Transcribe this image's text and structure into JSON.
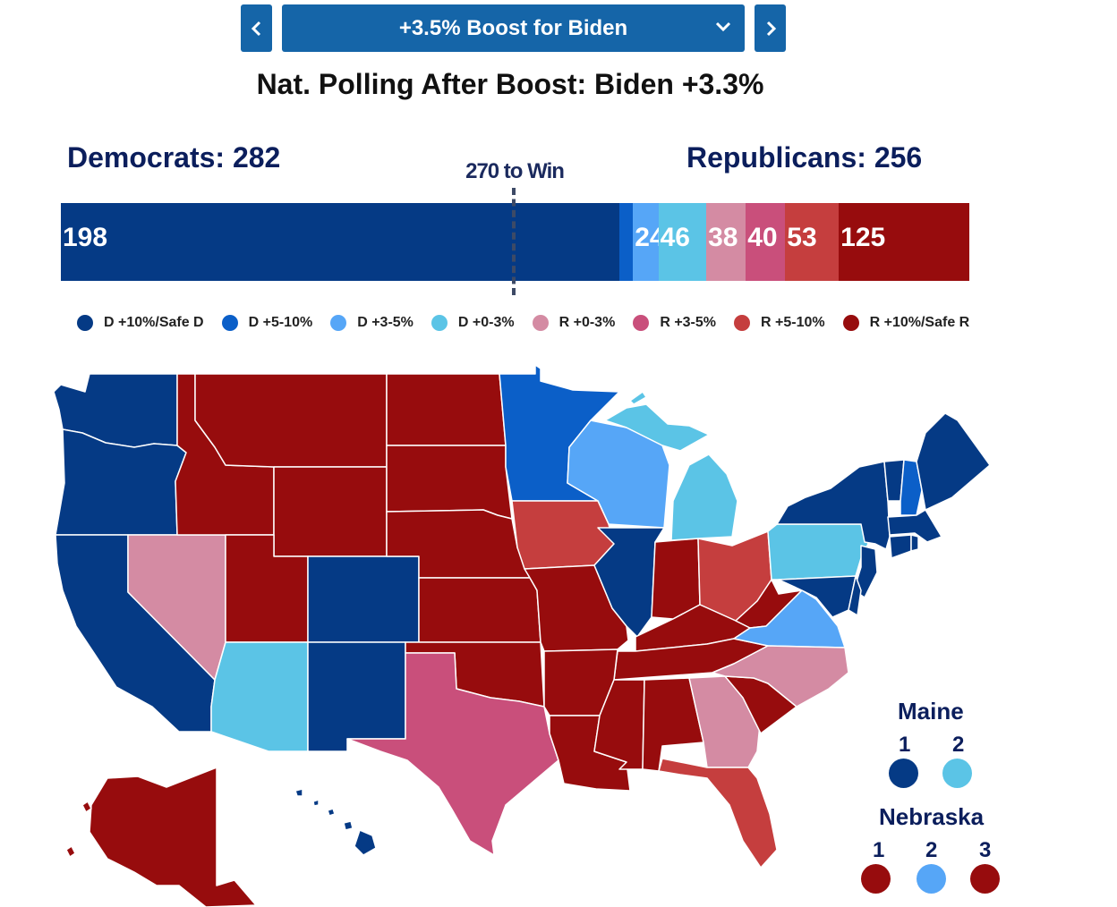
{
  "header": {
    "scenario_label": "+3.5% Boost for Biden",
    "polling_text": "Nat. Polling After Boost: Biden +3.3%"
  },
  "totals": {
    "democrats_label": "Democrats: 282",
    "republicans_label": "Republicans: 256",
    "to_win_label": "270 to Win"
  },
  "bar": {
    "segments": [
      {
        "label": "198",
        "value": 198,
        "color": "#053a85"
      },
      {
        "label": "",
        "value": 5,
        "color": "#0b5fc8"
      },
      {
        "label": "24",
        "value": 9,
        "color": "#56a6f7"
      },
      {
        "label": "46",
        "value": 17,
        "color": "#5bc4e6"
      },
      {
        "label": "38",
        "value": 14,
        "color": "#d48ba3"
      },
      {
        "label": "40",
        "value": 14,
        "color": "#c94f7b"
      },
      {
        "label": "53",
        "value": 19,
        "color": "#c53e3e"
      },
      {
        "label": "125",
        "value": 46,
        "color": "#970c0d"
      }
    ]
  },
  "legend": [
    {
      "label": "D +10%/Safe D",
      "color": "#053a85"
    },
    {
      "label": "D +5-10%",
      "color": "#0b5fc8"
    },
    {
      "label": "D +3-5%",
      "color": "#56a6f7"
    },
    {
      "label": "D +0-3%",
      "color": "#5bc4e6"
    },
    {
      "label": "R +0-3%",
      "color": "#d48ba3"
    },
    {
      "label": "R +3-5%",
      "color": "#c94f7b"
    },
    {
      "label": "R +5-10%",
      "color": "#c53e3e"
    },
    {
      "label": "R +10%/Safe R",
      "color": "#970c0d"
    }
  ],
  "colors": {
    "safe_d": "#053a85",
    "likely_d": "#0b5fc8",
    "lean_d": "#56a6f7",
    "tilt_d": "#5bc4e6",
    "tilt_r": "#d48ba3",
    "lean_r": "#c94f7b",
    "likely_r": "#c53e3e",
    "safe_r": "#970c0d"
  },
  "maine": {
    "title": "Maine",
    "districts": [
      {
        "label": "1",
        "color": "#053a85"
      },
      {
        "label": "2",
        "color": "#5bc4e6"
      }
    ]
  },
  "nebraska": {
    "title": "Nebraska",
    "districts": [
      {
        "label": "1",
        "color": "#970c0d"
      },
      {
        "label": "2",
        "color": "#56a6f7"
      },
      {
        "label": "3",
        "color": "#970c0d"
      }
    ]
  }
}
